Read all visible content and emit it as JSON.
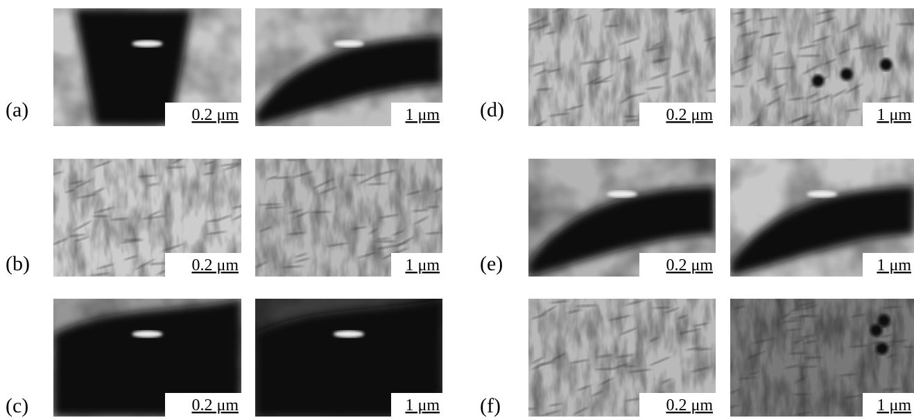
{
  "panels": [
    {
      "label": "(a)",
      "images": [
        {
          "scale": "0.2 μm"
        },
        {
          "scale": "1 μm"
        }
      ]
    },
    {
      "label": "(b)",
      "images": [
        {
          "scale": "0.2 μm"
        },
        {
          "scale": "1 μm"
        }
      ]
    },
    {
      "label": "(c)",
      "images": [
        {
          "scale": "0.2 μm"
        },
        {
          "scale": "1 μm"
        }
      ]
    },
    {
      "label": "(d)",
      "images": [
        {
          "scale": "0.2 μm"
        },
        {
          "scale": "1 μm"
        }
      ]
    },
    {
      "label": "(e)",
      "images": [
        {
          "scale": "0.2 μm"
        },
        {
          "scale": "1 μm"
        }
      ]
    },
    {
      "label": "(f)",
      "images": [
        {
          "scale": "0.2 μm"
        },
        {
          "scale": "1 μm"
        }
      ]
    }
  ]
}
